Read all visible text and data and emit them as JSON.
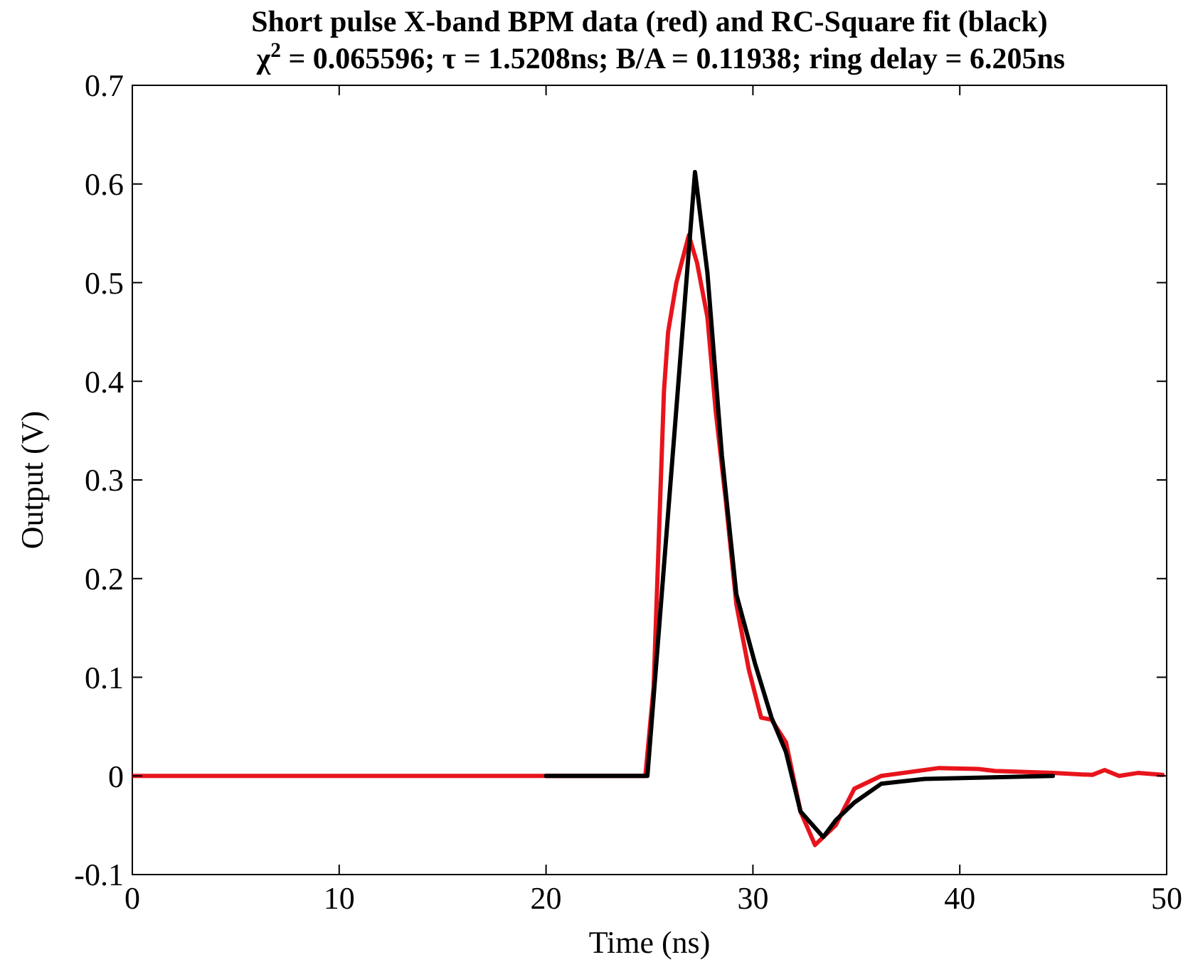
{
  "chart_data": {
    "type": "line",
    "title": "Short pulse X-band BPM data (red) and RC-Square fit (black)",
    "subtitle": "χ$^{2}$ = 0.065596; τ = 1.5208ns; B/A = 0.11938; ring delay = 6.205ns",
    "xlabel": "Time (ns)",
    "ylabel": "Output (V)",
    "xlim": [
      0,
      50
    ],
    "ylim": [
      -0.1,
      0.7
    ],
    "xticks": [
      0,
      10,
      20,
      30,
      40,
      50
    ],
    "yticks": [
      -0.1,
      0,
      0.1,
      0.2,
      0.3,
      0.4,
      0.5,
      0.6,
      0.7
    ],
    "grid": false,
    "marker": "none",
    "line_style": "solid",
    "series": [
      {
        "color": "#e8141c",
        "x": [
          0,
          5,
          10,
          15,
          20,
          24.8,
          25.2,
          25.7,
          25.9,
          26.3,
          26.9,
          27.3,
          27.8,
          28.2,
          28.7,
          29.2,
          29.8,
          30.4,
          30.9,
          31.6,
          32.3,
          33,
          34,
          34.9,
          36.2,
          39,
          40.9,
          41.7,
          44.5,
          46.4,
          47,
          47.7,
          48.6,
          49.8
        ],
        "values": [
          0,
          0,
          0,
          0,
          0,
          0,
          0.09,
          0.39,
          0.45,
          0.5,
          0.548,
          0.52,
          0.465,
          0.37,
          0.277,
          0.174,
          0.108,
          0.059,
          0.057,
          0.034,
          -0.036,
          -0.07,
          -0.05,
          -0.013,
          0,
          0.008,
          0.007,
          0.005,
          0.003,
          0.001,
          0.006,
          0,
          0.003,
          0.001
        ]
      },
      {
        "color": "#000000",
        "x": [
          20,
          24.9,
          27.2,
          27.8,
          28.5,
          29.2,
          30.1,
          30.9,
          31.6,
          32.3,
          33.4,
          34,
          34.9,
          36.2,
          38.3,
          44.5
        ],
        "values": [
          0,
          0,
          0.612,
          0.51,
          0.325,
          0.184,
          0.114,
          0.059,
          0.024,
          -0.036,
          -0.062,
          -0.045,
          -0.027,
          -0.008,
          -0.003,
          0
        ]
      }
    ]
  }
}
